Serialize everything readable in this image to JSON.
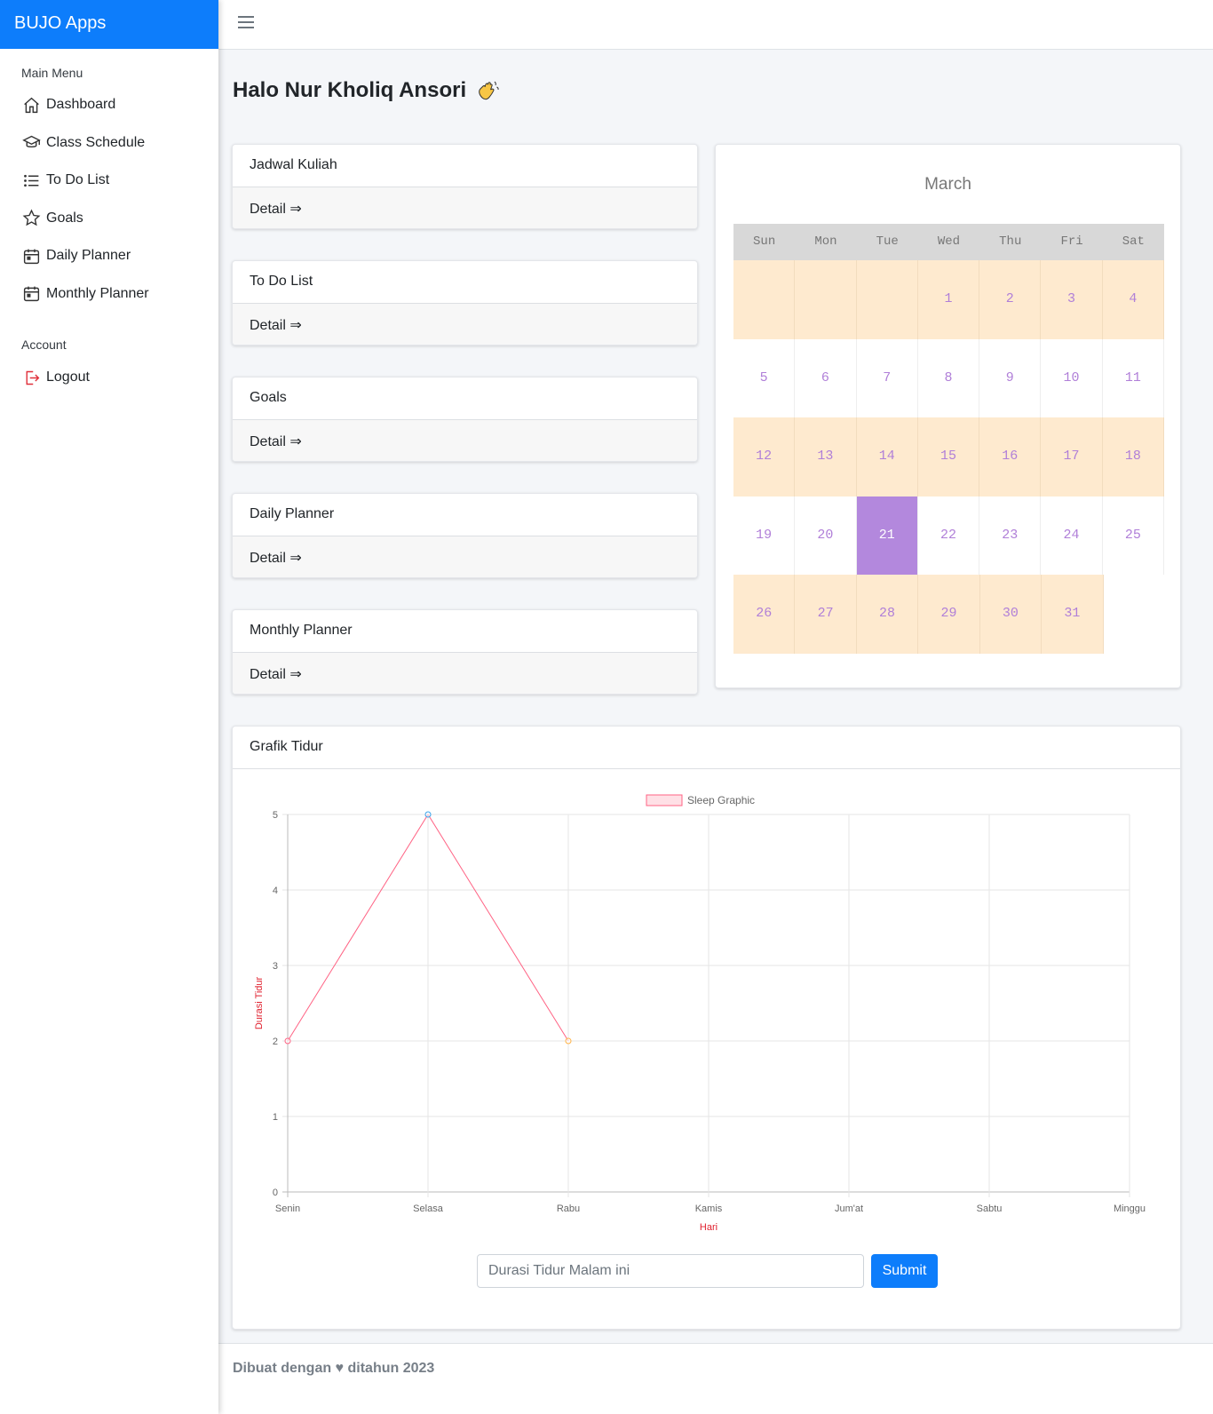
{
  "brand": "BUJO Apps",
  "sidebar": {
    "main_heading": "Main Menu",
    "items": [
      {
        "label": "Dashboard",
        "icon": "home-icon"
      },
      {
        "label": "Class Schedule",
        "icon": "graduation-cap-icon"
      },
      {
        "label": "To Do List",
        "icon": "list-icon"
      },
      {
        "label": "Goals",
        "icon": "star-icon"
      },
      {
        "label": "Daily Planner",
        "icon": "calendar-icon"
      },
      {
        "label": "Monthly Planner",
        "icon": "calendar-icon"
      }
    ],
    "account_heading": "Account",
    "logout_label": "Logout"
  },
  "greeting": "Halo Nur Kholiq Ansori",
  "cards": [
    {
      "title": "Jadwal Kuliah",
      "link": "Detail ⇒"
    },
    {
      "title": "To Do List",
      "link": "Detail ⇒"
    },
    {
      "title": "Goals",
      "link": "Detail ⇒"
    },
    {
      "title": "Daily Planner",
      "link": "Detail ⇒"
    },
    {
      "title": "Monthly Planner",
      "link": "Detail ⇒"
    }
  ],
  "calendar": {
    "month": "March",
    "weekdays": [
      "Sun",
      "Mon",
      "Tue",
      "Wed",
      "Thu",
      "Fri",
      "Sat"
    ],
    "weeks": [
      [
        "",
        "",
        "",
        "1",
        "2",
        "3",
        "4"
      ],
      [
        "5",
        "6",
        "7",
        "8",
        "9",
        "10",
        "11"
      ],
      [
        "12",
        "13",
        "14",
        "15",
        "16",
        "17",
        "18"
      ],
      [
        "19",
        "20",
        "21",
        "22",
        "23",
        "24",
        "25"
      ],
      [
        "26",
        "27",
        "28",
        "29",
        "30",
        "31",
        ""
      ]
    ],
    "today": "21"
  },
  "chart_card": {
    "title": "Grafik Tidur",
    "input_placeholder": "Durasi Tidur Malam ini",
    "submit_label": "Submit"
  },
  "chart_data": {
    "type": "line",
    "categories": [
      "Senin",
      "Selasa",
      "Rabu",
      "Kamis",
      "Jum'at",
      "Sabtu",
      "Minggu"
    ],
    "series": [
      {
        "name": "Sleep Graphic",
        "values": [
          2,
          5,
          2,
          null,
          null,
          null,
          null
        ]
      }
    ],
    "xlabel": "Hari",
    "ylabel": "Durasi Tidur",
    "ylim": [
      0,
      5
    ],
    "yticks": [
      "0",
      "1",
      "2",
      "3",
      "4",
      "5"
    ],
    "grid": true,
    "legend": "top",
    "line_color": "#ff6384",
    "point_colors": [
      "#ff6384",
      "#36a2eb",
      "#ffb347"
    ]
  },
  "footer": "Dibuat dengan ♥ ditahun 2023"
}
